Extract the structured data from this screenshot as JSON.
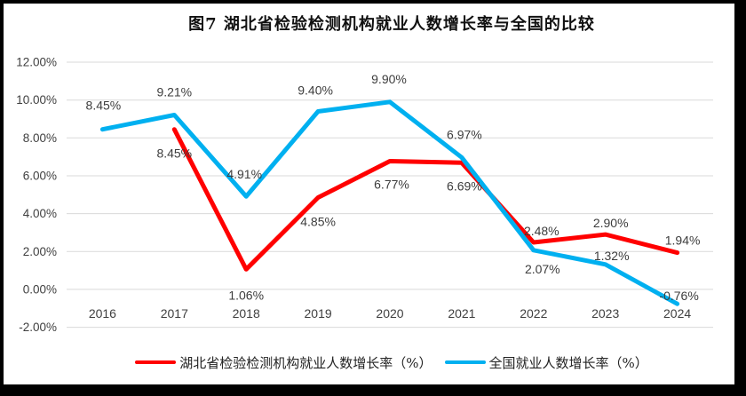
{
  "chart_data": {
    "type": "line",
    "title": "图7 湖北省检验检测机构就业人数增长率与全国的比较",
    "categories": [
      "2016",
      "2017",
      "2018",
      "2019",
      "2020",
      "2021",
      "2022",
      "2023",
      "2024"
    ],
    "series": [
      {
        "name": "湖北省检验检测机构就业人数增长率（%）",
        "color": "#FF0000",
        "values": [
          null,
          8.45,
          1.06,
          4.85,
          6.77,
          6.69,
          2.48,
          2.9,
          1.94
        ],
        "labels": [
          "",
          "8.45%",
          "1.06%",
          "4.85%",
          "6.77%",
          "6.69%",
          "2.48%",
          "2.90%",
          "1.94%"
        ]
      },
      {
        "name": "全国就业人数增长率（%）",
        "color": "#00B0F0",
        "values": [
          8.45,
          9.21,
          4.91,
          9.4,
          9.9,
          6.97,
          2.07,
          1.32,
          -0.76
        ],
        "labels": [
          "8.45%",
          "9.21%",
          "4.91%",
          "9.40%",
          "9.90%",
          "6.97%",
          "2.07%",
          "1.32%",
          "-0.76%"
        ]
      }
    ],
    "ylim": [
      -2,
      12
    ],
    "y_step": 2,
    "y_tick_format": "0.00%",
    "y_tick_labels": [
      "12.00%",
      "10.00%",
      "8.00%",
      "6.00%",
      "4.00%",
      "2.00%",
      "0.00%",
      "-2.00%"
    ],
    "grid": true,
    "legend_position": "bottom",
    "colors": {
      "gridline": "#D9D9D9",
      "text": "#404040",
      "frame": "#000000",
      "background": "#FFFFFF"
    }
  }
}
